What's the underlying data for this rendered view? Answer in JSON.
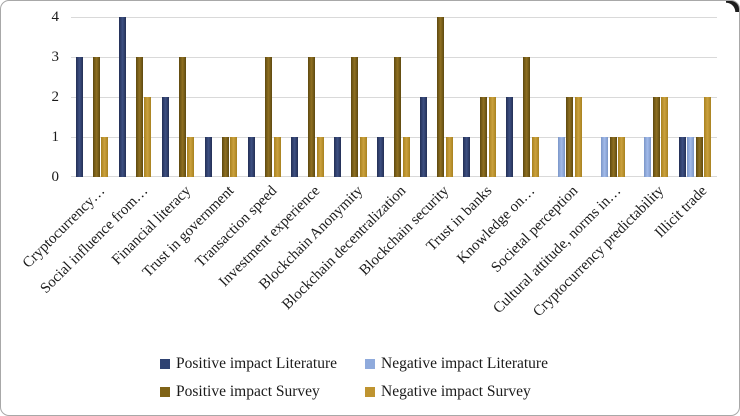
{
  "chart_data": {
    "type": "bar",
    "title": "",
    "xlabel": "",
    "ylabel": "",
    "categories": [
      "Cryptocurrency…",
      "Social influence from…",
      "Financial literacy",
      "Trust in government",
      "Transaction speed",
      "Investment experience",
      "Blockchain Anonymity",
      "Blockchain decentralization",
      "Blockchain security",
      "Trust in banks",
      "Knowledge on…",
      "Societal perception",
      "Cultural attitude, norms in…",
      "Cryptocurrency predictability",
      "Illicit trade"
    ],
    "series": [
      {
        "name": "Positive impact Literature",
        "color": "#2E4272",
        "color_light": "#3E5082",
        "color_dark": "#232F56",
        "values": [
          3,
          4,
          2,
          1,
          1,
          1,
          1,
          1,
          2,
          1,
          2,
          0,
          0,
          0,
          1
        ]
      },
      {
        "name": "Negative impact Literature",
        "color": "#8FAADC",
        "color_light": "#A2BBEA",
        "color_dark": "#7B96C8",
        "values": [
          0,
          0,
          0,
          0,
          0,
          0,
          0,
          0,
          0,
          0,
          0,
          1,
          1,
          1,
          1
        ]
      },
      {
        "name": "Positive impact Survey",
        "color": "#7F6317",
        "color_light": "#8F7022",
        "color_dark": "#5E490F",
        "values": [
          3,
          3,
          3,
          1,
          3,
          3,
          3,
          3,
          4,
          2,
          3,
          2,
          1,
          2,
          1
        ]
      },
      {
        "name": "Negative impact Survey",
        "color": "#BF9430",
        "color_light": "#CBA13E",
        "color_dark": "#A8821F",
        "values": [
          1,
          2,
          1,
          1,
          1,
          1,
          1,
          1,
          1,
          2,
          1,
          2,
          1,
          2,
          2
        ]
      }
    ],
    "y_ticks": [
      "0",
      "1",
      "2",
      "3",
      "4"
    ],
    "ylim": [
      0,
      4
    ],
    "grid": true,
    "gridline_color": "#D9D9D9",
    "legend_position": "bottom"
  }
}
